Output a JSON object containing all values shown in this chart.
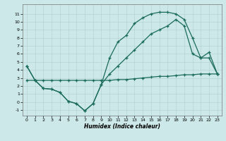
{
  "title": "",
  "xlabel": "Humidex (Indice chaleur)",
  "bg_color": "#cce8e8",
  "line_color": "#1a6b5a",
  "xlim": [
    -0.5,
    23.5
  ],
  "ylim": [
    -1.7,
    12.2
  ],
  "xticks": [
    0,
    1,
    2,
    3,
    4,
    5,
    6,
    7,
    8,
    9,
    10,
    11,
    12,
    13,
    14,
    15,
    16,
    17,
    18,
    19,
    20,
    21,
    22,
    23
  ],
  "yticks": [
    -1,
    0,
    1,
    2,
    3,
    4,
    5,
    6,
    7,
    8,
    9,
    10,
    11
  ],
  "line1_x": [
    0,
    1,
    2,
    3,
    4,
    5,
    6,
    7,
    8,
    9,
    10,
    11,
    12,
    13,
    14,
    15,
    16,
    17,
    18,
    19,
    20,
    21,
    22,
    23
  ],
  "line1_y": [
    4.5,
    2.7,
    1.7,
    1.6,
    1.2,
    0.1,
    -0.2,
    -1.1,
    -0.2,
    2.2,
    5.5,
    7.5,
    8.3,
    9.8,
    10.5,
    11.0,
    11.2,
    11.2,
    11.0,
    10.3,
    8.0,
    5.5,
    5.5,
    3.5
  ],
  "line2_x": [
    0,
    1,
    2,
    3,
    4,
    5,
    6,
    7,
    8,
    9,
    10,
    11,
    12,
    13,
    14,
    15,
    16,
    17,
    18,
    19,
    20,
    21,
    22,
    23
  ],
  "line2_y": [
    4.5,
    2.7,
    1.7,
    1.6,
    1.2,
    0.1,
    -0.2,
    -1.1,
    -0.2,
    2.2,
    3.5,
    4.5,
    5.5,
    6.5,
    7.5,
    8.5,
    9.0,
    9.5,
    10.3,
    9.5,
    6.0,
    5.5,
    6.2,
    3.5
  ],
  "line3_x": [
    0,
    1,
    2,
    3,
    4,
    5,
    6,
    7,
    8,
    9,
    10,
    11,
    12,
    13,
    14,
    15,
    16,
    17,
    18,
    19,
    20,
    21,
    22,
    23
  ],
  "line3_y": [
    2.7,
    2.7,
    2.7,
    2.7,
    2.7,
    2.7,
    2.7,
    2.7,
    2.7,
    2.7,
    2.7,
    2.8,
    2.8,
    2.9,
    3.0,
    3.1,
    3.2,
    3.2,
    3.3,
    3.4,
    3.4,
    3.5,
    3.5,
    3.5
  ],
  "grid_color": "#b0d0d0",
  "marker": "+"
}
